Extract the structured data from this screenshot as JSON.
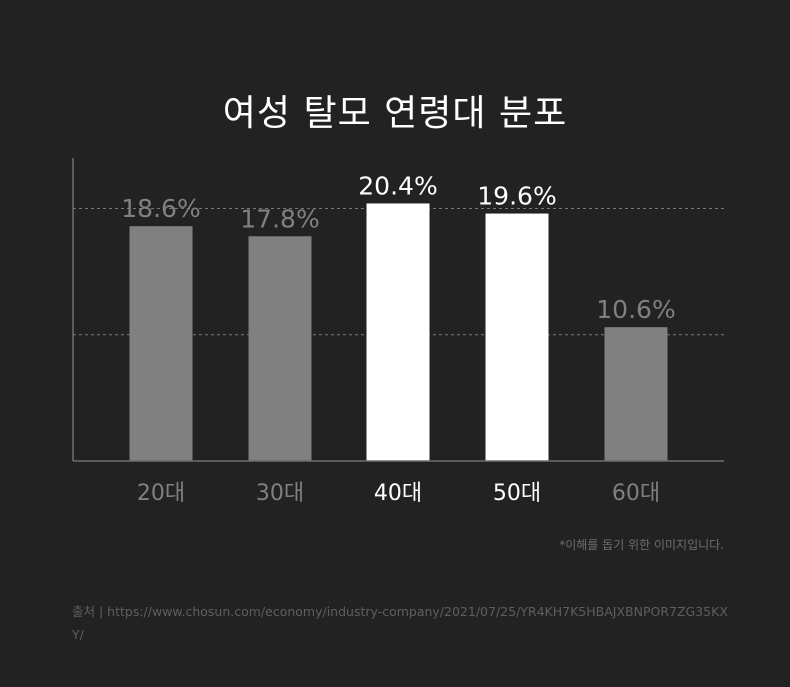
{
  "title": "여성 탈모 연령대 분포",
  "note": "*이해를 돕기 위한 이미지입니다.",
  "source": "출처 | https://www.chosun.com/economy/industry-company/2021/07/25/YR4KH7K5HBAJXBNPOR7ZG35KXY/",
  "colors": {
    "background": "#232222",
    "highlight": "#ffffff",
    "muted": "#808080"
  },
  "chart_data": {
    "type": "bar",
    "title": "여성 탈모 연령대 분포",
    "categories": [
      "20대",
      "30대",
      "40대",
      "50대",
      "60대"
    ],
    "values": [
      18.6,
      17.8,
      20.4,
      19.6,
      10.6
    ],
    "value_labels": [
      "18.6%",
      "17.8%",
      "20.4%",
      "19.6%",
      "10.6%"
    ],
    "highlighted": [
      false,
      false,
      true,
      true,
      false
    ],
    "ylim": [
      0,
      24
    ],
    "xlabel": "",
    "ylabel": "",
    "grid": "dashed horizontal",
    "legend": "none"
  }
}
